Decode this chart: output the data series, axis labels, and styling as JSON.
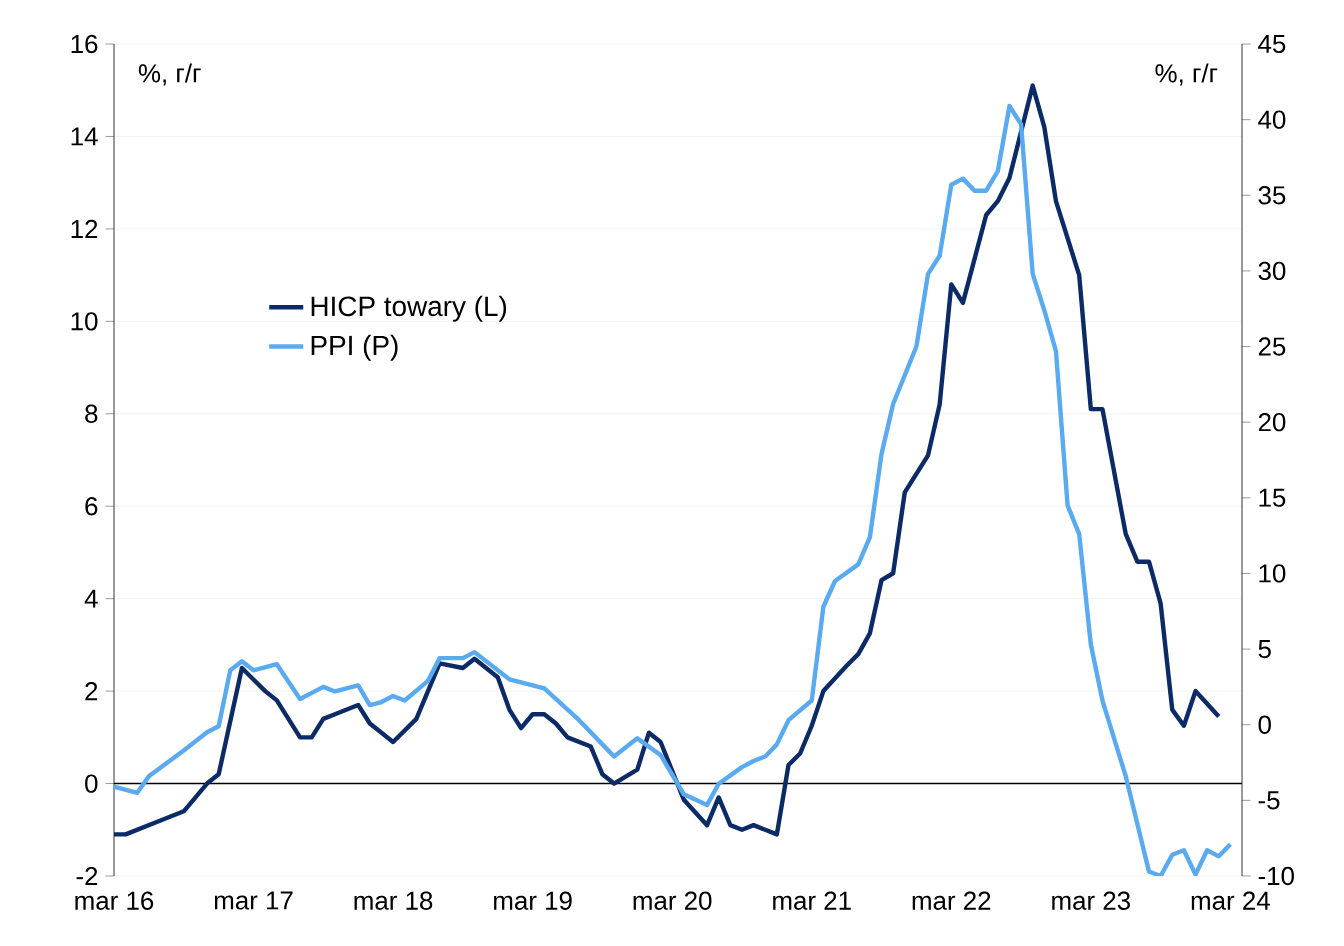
{
  "chart_data": {
    "type": "line",
    "ylabel": "%, г/г",
    "y2label": "%, г/г",
    "xlim": [
      "2016-03",
      "2024-04"
    ],
    "xticks": [
      {
        "value": "2016-03",
        "label": "mar 16"
      },
      {
        "value": "2017-03",
        "label": "mar 17"
      },
      {
        "value": "2018-03",
        "label": "mar 18"
      },
      {
        "value": "2019-03",
        "label": "mar 19"
      },
      {
        "value": "2020-03",
        "label": "mar 20"
      },
      {
        "value": "2021-03",
        "label": "mar 21"
      },
      {
        "value": "2022-03",
        "label": "mar 22"
      },
      {
        "value": "2023-03",
        "label": "mar 23"
      },
      {
        "value": "2024-03",
        "label": "mar 24"
      }
    ],
    "ylim": [
      -2,
      16
    ],
    "yticks": [
      -2,
      0,
      2,
      4,
      6,
      8,
      10,
      12,
      14,
      16
    ],
    "y2lim": [
      -10,
      45
    ],
    "y2ticks": [
      -10,
      -5,
      0,
      5,
      10,
      15,
      20,
      25,
      30,
      35,
      40,
      45
    ],
    "grid": "y",
    "legend": "left",
    "line_style": "solid",
    "marker": "none",
    "series": [
      {
        "name": "HICP towary (L)",
        "color": "#0b2a66",
        "axis": "y",
        "x": [
          "2016-03",
          "2016-04",
          "2016-07",
          "2016-09",
          "2016-11",
          "2016-12",
          "2017-02",
          "2017-04",
          "2017-05",
          "2017-07",
          "2017-08",
          "2017-09",
          "2017-10",
          "2017-12",
          "2018-01",
          "2018-03",
          "2018-05",
          "2018-06",
          "2018-07",
          "2018-09",
          "2018-10",
          "2018-12",
          "2019-01",
          "2019-02",
          "2019-03",
          "2019-04",
          "2019-05",
          "2019-06",
          "2019-08",
          "2019-09",
          "2019-10",
          "2019-12",
          "2020-01",
          "2020-02",
          "2020-04",
          "2020-06",
          "2020-07",
          "2020-08",
          "2020-09",
          "2020-10",
          "2020-11",
          "2020-12",
          "2021-01",
          "2021-02",
          "2021-03",
          "2021-04",
          "2021-06",
          "2021-07",
          "2021-08",
          "2021-09",
          "2021-10",
          "2021-11",
          "2022-01",
          "2022-02",
          "2022-03",
          "2022-04",
          "2022-06",
          "2022-07",
          "2022-08",
          "2022-10",
          "2022-11",
          "2022-12",
          "2023-02",
          "2023-03",
          "2023-04",
          "2023-06",
          "2023-07",
          "2023-08",
          "2023-09",
          "2023-10",
          "2023-11",
          "2023-12",
          "2024-02"
        ],
        "values": [
          -1.1,
          -1.1,
          -0.8,
          -0.6,
          0.0,
          0.2,
          2.5,
          2.0,
          1.8,
          1.0,
          1.0,
          1.4,
          1.5,
          1.7,
          1.3,
          0.9,
          1.4,
          2.0,
          2.6,
          2.5,
          2.7,
          2.3,
          1.6,
          1.2,
          1.5,
          1.5,
          1.3,
          1.0,
          0.8,
          0.2,
          0.0,
          0.3,
          1.1,
          0.9,
          -0.35,
          -0.9,
          -0.3,
          -0.9,
          -1.0,
          -0.9,
          -1.0,
          -1.1,
          0.4,
          0.65,
          1.25,
          2.0,
          2.55,
          2.8,
          3.25,
          4.4,
          4.55,
          6.3,
          7.1,
          8.2,
          10.8,
          10.4,
          12.3,
          12.6,
          13.1,
          15.1,
          14.2,
          12.6,
          11.0,
          8.1,
          8.1,
          5.4,
          4.8,
          4.8,
          3.9,
          1.6,
          1.25,
          2.0,
          1.45
        ]
      },
      {
        "name": "PPI (P)",
        "color": "#5aaaf0",
        "axis": "y2",
        "x": [
          "2016-03",
          "2016-05",
          "2016-06",
          "2016-09",
          "2016-11",
          "2016-12",
          "2017-01",
          "2017-02",
          "2017-03",
          "2017-05",
          "2017-07",
          "2017-09",
          "2017-10",
          "2017-12",
          "2018-01",
          "2018-02",
          "2018-03",
          "2018-04",
          "2018-06",
          "2018-07",
          "2018-09",
          "2018-10",
          "2019-01",
          "2019-02",
          "2019-04",
          "2019-07",
          "2019-09",
          "2019-10",
          "2019-12",
          "2020-02",
          "2020-04",
          "2020-06",
          "2020-07",
          "2020-09",
          "2020-10",
          "2020-11",
          "2020-12",
          "2021-01",
          "2021-03",
          "2021-04",
          "2021-05",
          "2021-07",
          "2021-08",
          "2021-09",
          "2021-10",
          "2021-12",
          "2022-01",
          "2022-02",
          "2022-03",
          "2022-04",
          "2022-05",
          "2022-06",
          "2022-07",
          "2022-08",
          "2022-09",
          "2022-10",
          "2022-11",
          "2022-12",
          "2023-01",
          "2023-02",
          "2023-03",
          "2023-04",
          "2023-06",
          "2023-08",
          "2023-09",
          "2023-10",
          "2023-11",
          "2023-12",
          "2024-01",
          "2024-02",
          "2024-03"
        ],
        "values": [
          -4.1,
          -4.5,
          -3.4,
          -1.7,
          -0.5,
          -0.1,
          3.6,
          4.2,
          3.6,
          4.0,
          1.7,
          2.5,
          2.2,
          2.6,
          1.3,
          1.5,
          1.9,
          1.6,
          2.9,
          4.4,
          4.4,
          4.8,
          3.0,
          2.8,
          2.4,
          0.3,
          -1.3,
          -2.1,
          -0.9,
          -2.0,
          -4.6,
          -5.3,
          -3.9,
          -2.8,
          -2.4,
          -2.1,
          -1.3,
          0.3,
          1.6,
          7.8,
          9.5,
          10.6,
          12.4,
          17.9,
          21.2,
          25.0,
          29.8,
          31.0,
          35.7,
          36.1,
          35.3,
          35.3,
          36.6,
          40.9,
          39.7,
          29.8,
          27.4,
          24.7,
          14.5,
          12.6,
          5.3,
          1.6,
          -3.4,
          -9.7,
          -10.0,
          -8.6,
          -8.3,
          -9.9,
          -8.3,
          -8.7,
          -7.9
        ]
      }
    ]
  }
}
